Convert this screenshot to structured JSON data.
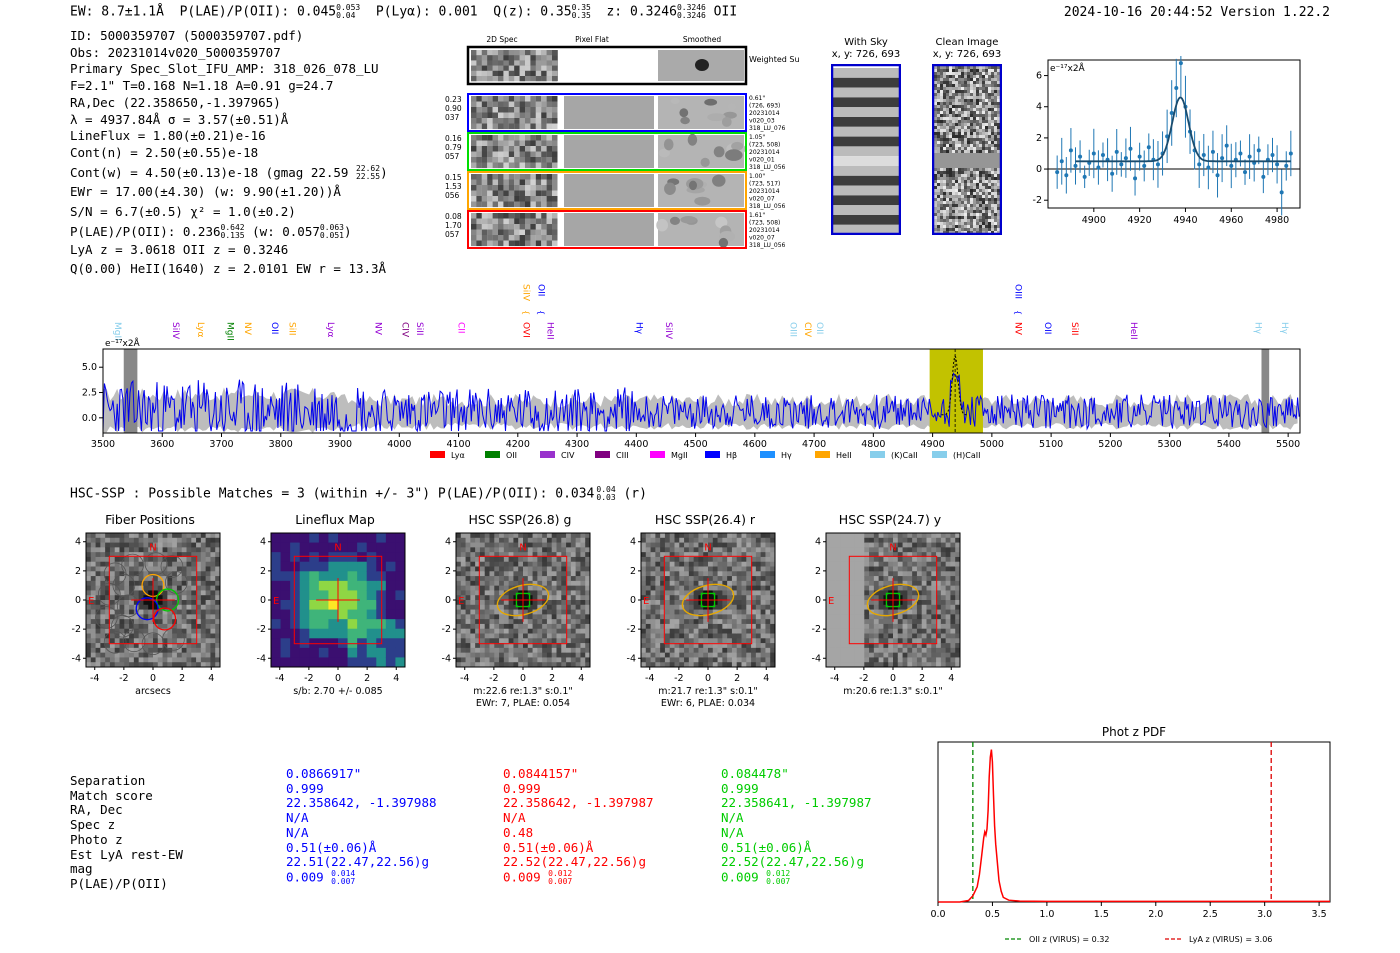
{
  "header": {
    "ew": "EW: 8.7±1.1Å",
    "plae": "P(LAE)/P(OII): 0.045",
    "plae_hi": "0.053",
    "plae_lo": "0.04",
    "plya": "P(Lyα): 0.001",
    "qz": "Q(z): 0.35",
    "qz_hi": "0.35",
    "qz_lo": "0.35",
    "z": "z: 0.3246",
    "z_hi": "0.3246",
    "z_lo": "0.3246",
    "line": "OII",
    "timestamp": "2024-10-16 20:44:52  Version 1.22.2"
  },
  "info": {
    "lines": [
      "ID: 5000359707 (5000359707.pdf)",
      "Obs: 20231014v020_5000359707",
      "Primary Spec_Slot_IFU_AMP: 318_026_078_LU",
      "F=2.1\"  T=0.168  N=1.18  A=0.91  g=24.7",
      "RA,Dec (22.358650,-1.397965)",
      "λ = 4937.84Å  σ = 3.57(±0.51)Å",
      "LineFlux = 1.80(±0.21)e-16",
      "Cont(n) = 2.50(±0.55)e-18"
    ],
    "contw": "Cont(w) = 4.50(±0.13)e-18 (gmag 22.59",
    "contw_hi": "22.62",
    "contw_lo": "22.55",
    "ewr": "EWr = 17.00(±4.30) (w: 9.90(±1.20))Å",
    "sn": "S/N = 6.7(±0.5)  χ² = 1.0(±0.2)",
    "plae2": "P(LAE)/P(OII): 0.236",
    "plae2_hi": "0.642",
    "plae2_lo": "0.135",
    "plae2_w": "(w: 0.057",
    "plae2_w_hi": "0.063",
    "plae2_w_lo": "0.051",
    "lya": "LyA z = 3.0618  OII z = 0.3246",
    "heii": "Q(0.00) HeII(1640) z = 2.0101  EW r = 13.3Å"
  },
  "cutouts": {
    "col_titles": [
      "2D Spec",
      "Pixel Flat",
      "Smoothed"
    ],
    "weighted": "Weighted Sum",
    "rows": [
      {
        "left": [
          "0.23",
          "0.90",
          "037"
        ],
        "right": [
          "0.61\"",
          "(726, 693)",
          "20231014",
          "v020_03",
          "318_LU_076"
        ],
        "color": "#0000ff"
      },
      {
        "left": [
          "0.16",
          "0.79",
          "057"
        ],
        "right": [
          "1.05\"",
          "(723, 508)",
          "20231014",
          "v020_01",
          "318_LU_056"
        ],
        "color": "#00dd00"
      },
      {
        "left": [
          "0.15",
          "1.53",
          "056"
        ],
        "right": [
          "1.00\"",
          "(723, 517)",
          "20231014",
          "v020_07",
          "318_LU_056"
        ],
        "color": "#ffa500"
      },
      {
        "left": [
          "0.08",
          "1.70",
          "057"
        ],
        "right": [
          "1.61\"",
          "(723, 508)",
          "20231014",
          "v020_07",
          "318_LU_056"
        ],
        "color": "#ff0000"
      }
    ]
  },
  "sky": {
    "with_sky_title": "With Sky",
    "with_sky_xy": "x, y: 726, 693",
    "clean_title": "Clean Image",
    "clean_xy": "x, y: 726, 693"
  },
  "chart_data": [
    {
      "type": "scatter",
      "title": "zoom line fit",
      "ylabel": "e⁻¹⁷x2Å",
      "xlim": [
        4880,
        4990
      ],
      "ylim": [
        -2.5,
        7
      ],
      "xticks": [
        "4900",
        "4920",
        "4940",
        "4960",
        "4980"
      ],
      "yticks": [
        "-2",
        "0",
        "2",
        "4",
        "6"
      ],
      "fit": {
        "center": 4937.8,
        "sigma": 3.57,
        "amp": 4.1,
        "base": 0.5
      },
      "x": [
        4884,
        4886,
        4888,
        4890,
        4892,
        4894,
        4896,
        4898,
        4900,
        4902,
        4904,
        4906,
        4908,
        4910,
        4912,
        4914,
        4916,
        4918,
        4920,
        4922,
        4924,
        4926,
        4928,
        4930,
        4932,
        4934,
        4936,
        4938,
        4940,
        4942,
        4944,
        4946,
        4948,
        4950,
        4952,
        4954,
        4956,
        4958,
        4960,
        4962,
        4964,
        4966,
        4968,
        4970,
        4972,
        4974,
        4976,
        4978,
        4980,
        4982,
        4984,
        4986
      ],
      "values": [
        -0.2,
        0.5,
        -0.4,
        1.2,
        0.2,
        0.8,
        -0.5,
        0.4,
        1.0,
        0.1,
        0.9,
        0.6,
        -0.3,
        1.1,
        0.3,
        0.7,
        1.3,
        -0.6,
        0.8,
        0.2,
        1.4,
        0.6,
        0.3,
        1.0,
        2.1,
        3.6,
        5.2,
        6.8,
        4.0,
        2.4,
        1.2,
        0.3,
        0.9,
        0.1,
        1.1,
        -0.4,
        0.7,
        1.5,
        0.2,
        0.6,
        1.0,
        -0.2,
        0.8,
        0.4,
        1.2,
        -0.5,
        0.6,
        0.9,
        0.3,
        -1.5,
        0.2,
        1.0
      ]
    },
    {
      "type": "line",
      "title": "full spectrum",
      "ylabel": "e⁻¹⁷x2Å",
      "xlim": [
        3500,
        5520
      ],
      "ylim": [
        -1.5,
        6.8
      ],
      "xticks": [
        "3500",
        "3600",
        "3700",
        "3800",
        "3900",
        "4000",
        "4100",
        "4200",
        "4300",
        "4400",
        "4500",
        "4600",
        "4700",
        "4800",
        "4900",
        "5000",
        "5100",
        "5200",
        "5300",
        "5400",
        "5500"
      ],
      "yticks": [
        "0.0",
        "2.5",
        "5.0"
      ],
      "highlight": [
        4895,
        4985
      ],
      "gray_bands": [
        [
          3535,
          3558
        ],
        [
          5455,
          5468
        ]
      ],
      "line_labels": [
        {
          "name": "MgII",
          "x": 3520,
          "row": 1,
          "color": "#87ceeb"
        },
        {
          "name": "SiIV",
          "x": 3618,
          "row": 1,
          "color": "#9400d3"
        },
        {
          "name": "Lyα",
          "x": 3660,
          "row": 1,
          "color": "#ffa500"
        },
        {
          "name": "MgII",
          "x": 3710,
          "row": 1,
          "color": "#008000"
        },
        {
          "name": "NV",
          "x": 3740,
          "row": 1,
          "color": "#ffa500"
        },
        {
          "name": "OII",
          "x": 3785,
          "row": 1,
          "color": "#0000ff"
        },
        {
          "name": "SiII",
          "x": 3815,
          "row": 1,
          "color": "#ffa500"
        },
        {
          "name": "Lyα",
          "x": 3880,
          "row": 1,
          "color": "#9400d3"
        },
        {
          "name": "NV",
          "x": 3960,
          "row": 1,
          "color": "#9400d3"
        },
        {
          "name": "CIV",
          "x": 4005,
          "row": 1,
          "color": "#800080"
        },
        {
          "name": "SiII",
          "x": 4030,
          "row": 1,
          "color": "#9400d3"
        },
        {
          "name": "CII",
          "x": 4100,
          "row": 1,
          "color": "#ff00ff"
        },
        {
          "name": "SiIV",
          "x": 4210,
          "row": 0,
          "color": "#ffa500"
        },
        {
          "name": "OII",
          "x": 4235,
          "row": 0,
          "color": "#0000ff"
        },
        {
          "name": "OVI",
          "x": 4210,
          "row": 1,
          "color": "#ff0000"
        },
        {
          "name": "HeII",
          "x": 4250,
          "row": 1,
          "color": "#9400d3"
        },
        {
          "name": "Hγ",
          "x": 4400,
          "row": 1,
          "color": "#0000ff"
        },
        {
          "name": "SiIV",
          "x": 4450,
          "row": 1,
          "color": "#9400d3"
        },
        {
          "name": "OIII",
          "x": 4660,
          "row": 1,
          "color": "#87ceeb"
        },
        {
          "name": "CIV",
          "x": 4685,
          "row": 1,
          "color": "#ffa500"
        },
        {
          "name": "OII",
          "x": 4705,
          "row": 1,
          "color": "#87ceeb"
        },
        {
          "name": "OIII",
          "x": 5040,
          "row": 0,
          "color": "#0000ff"
        },
        {
          "name": "NV",
          "x": 5040,
          "row": 1,
          "color": "#ff0000"
        },
        {
          "name": "OII",
          "x": 5090,
          "row": 1,
          "color": "#0000ff"
        },
        {
          "name": "SiII",
          "x": 5135,
          "row": 1,
          "color": "#ff0000"
        },
        {
          "name": "HeII",
          "x": 5235,
          "row": 1,
          "color": "#9400d3"
        },
        {
          "name": "Hγ",
          "x": 5445,
          "row": 1,
          "color": "#87ceeb"
        },
        {
          "name": "Hγ",
          "x": 5490,
          "row": 1,
          "color": "#87ceeb"
        }
      ],
      "legend": [
        {
          "name": "Lyα",
          "color": "#ff0000"
        },
        {
          "name": "OII",
          "color": "#008000"
        },
        {
          "name": "CIV",
          "color": "#9932cc"
        },
        {
          "name": "CIII",
          "color": "#800080"
        },
        {
          "name": "MgII",
          "color": "#ff00ff"
        },
        {
          "name": "Hβ",
          "color": "#0000ff"
        },
        {
          "name": "Hγ",
          "color": "#1e90ff"
        },
        {
          "name": "HeII",
          "color": "#ffa500"
        },
        {
          "name": "(K)CaII",
          "color": "#87ceeb"
        },
        {
          "name": "(H)CaII",
          "color": "#87ceeb"
        }
      ]
    },
    {
      "type": "line",
      "title": "Phot z PDF",
      "xlim": [
        0,
        3.6
      ],
      "ylim": [
        0,
        1.05
      ],
      "xticks": [
        "0.0",
        "0.5",
        "1.0",
        "1.5",
        "2.0",
        "2.5",
        "3.0",
        "3.5"
      ],
      "x": [
        0,
        0.2,
        0.28,
        0.32,
        0.36,
        0.38,
        0.4,
        0.42,
        0.43,
        0.44,
        0.45,
        0.46,
        0.47,
        0.48,
        0.49,
        0.5,
        0.51,
        0.52,
        0.53,
        0.54,
        0.55,
        0.56,
        0.58,
        0.6,
        0.65,
        0.75,
        1.0,
        3.6
      ],
      "values": [
        0,
        0,
        0.01,
        0.04,
        0.1,
        0.18,
        0.3,
        0.42,
        0.46,
        0.44,
        0.48,
        0.6,
        0.82,
        0.95,
        1.0,
        0.92,
        0.7,
        0.5,
        0.38,
        0.3,
        0.22,
        0.14,
        0.07,
        0.03,
        0.012,
        0.006,
        0.004,
        0.004
      ],
      "vlines": [
        {
          "x": 0.32,
          "color": "#008800"
        },
        {
          "x": 3.06,
          "color": "#dd0000"
        }
      ],
      "legend": [
        {
          "name": "OII z (VIRUS) = 0.32",
          "color": "#008800"
        },
        {
          "name": "LyA z (VIRUS) = 3.06",
          "color": "#dd0000"
        }
      ]
    }
  ],
  "hsc": {
    "summary": "HSC-SSP : Possible Matches = 3 (within +/- 3\")  P(LAE)/P(OII): 0.034",
    "summary_hi": "0.04",
    "summary_lo": "0.03",
    "summary_band": "(r)",
    "panels": [
      {
        "title": "Fiber Positions",
        "cap1": "arcsecs",
        "cap2": ""
      },
      {
        "title": "Lineflux Map",
        "cap1": "s/b: 2.70 +/- 0.085",
        "cap2": ""
      },
      {
        "title": "HSC SSP(26.8) g",
        "cap1": "m:22.6  re:1.3\"  s:0.1\"",
        "cap2": "EWr: 7, PLAE: 0.054"
      },
      {
        "title": "HSC SSP(26.4) r",
        "cap1": "m:21.7  re:1.3\"  s:0.1\"",
        "cap2": "EWr: 6, PLAE: 0.034"
      },
      {
        "title": "HSC SSP(24.7) y",
        "cap1": "m:20.6  re:1.3\"  s:0.1\"",
        "cap2": ""
      }
    ],
    "ticks": [
      "-4",
      "-2",
      "0",
      "2",
      "4"
    ],
    "n_label": "N",
    "e_label": "E"
  },
  "table": {
    "labels": [
      "Separation",
      "Match score",
      "RA, Dec",
      "Spec z",
      "Photo z",
      "Est LyA rest-EW",
      "mag",
      "P(LAE)/P(OII)"
    ],
    "columns": [
      {
        "color": "#0000ff",
        "values": [
          "0.0866917\"",
          "0.999",
          "22.358642, -1.397988",
          "N/A",
          "N/A",
          "0.51(±0.06)Å",
          "22.51(22.47,22.56)g",
          "0.009"
        ],
        "p_hi": "0.014",
        "p_lo": "0.007"
      },
      {
        "color": "#ff0000",
        "values": [
          "0.0844157\"",
          "0.999",
          "22.358642, -1.397987",
          "N/A",
          "0.48",
          "0.51(±0.06)Å",
          "22.52(22.47,22.56)g",
          "0.009"
        ],
        "p_hi": "0.012",
        "p_lo": "0.007"
      },
      {
        "color": "#00cc00",
        "values": [
          "0.084478\"",
          "0.999",
          "22.358641, -1.397987",
          "N/A",
          "N/A",
          "0.51(±0.06)Å",
          "22.52(22.47,22.56)g",
          "0.009"
        ],
        "p_hi": "0.012",
        "p_lo": "0.007"
      }
    ]
  }
}
